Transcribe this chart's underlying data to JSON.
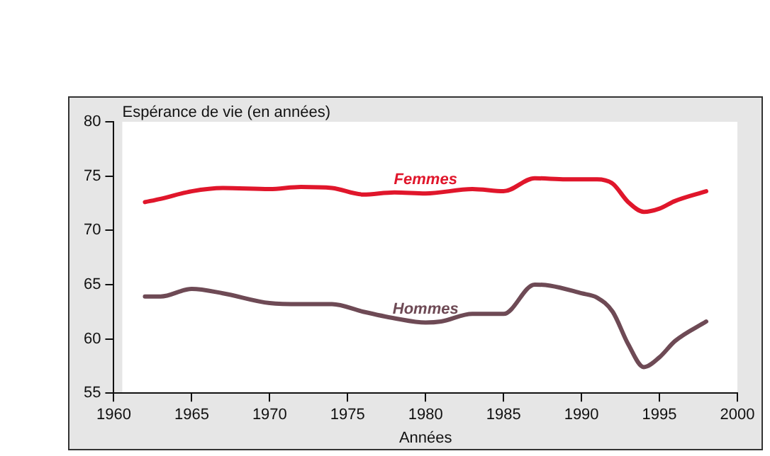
{
  "chart_data": {
    "type": "line",
    "xlabel": "Années",
    "ylabel": "Espérance de vie (en années)",
    "xlim": [
      1960,
      2000
    ],
    "xticks": [
      1960,
      1965,
      1970,
      1975,
      1980,
      1985,
      1990,
      1995,
      2000
    ],
    "ylim": [
      55,
      80
    ],
    "yticks": [
      55,
      60,
      65,
      70,
      75,
      80
    ],
    "grid": false,
    "legend": false,
    "marker": "none",
    "line_style": "solid",
    "series": [
      {
        "name": "Femmes",
        "color": "#e0162b",
        "x": [
          1962,
          1963,
          1965,
          1967,
          1970,
          1972,
          1974,
          1976,
          1978,
          1980,
          1983,
          1985,
          1987,
          1989,
          1991,
          1992,
          1993,
          1994,
          1995,
          1996,
          1998
        ],
        "values": [
          72.6,
          72.9,
          73.6,
          73.9,
          73.8,
          74.0,
          73.9,
          73.3,
          73.5,
          73.4,
          73.8,
          73.6,
          74.8,
          74.7,
          74.7,
          74.3,
          72.6,
          71.7,
          72.0,
          72.7,
          73.6
        ]
      },
      {
        "name": "Hommes",
        "color": "#6e4a55",
        "x": [
          1962,
          1963,
          1965,
          1967,
          1970,
          1972,
          1974,
          1976,
          1978,
          1980,
          1981,
          1983,
          1985,
          1987,
          1988,
          1990,
          1991,
          1992,
          1993,
          1994,
          1995,
          1996,
          1998
        ],
        "values": [
          63.9,
          63.9,
          64.6,
          64.2,
          63.3,
          63.2,
          63.2,
          62.5,
          61.9,
          61.5,
          61.6,
          62.3,
          62.3,
          65.0,
          64.9,
          64.2,
          63.8,
          62.5,
          59.5,
          57.4,
          58.3,
          59.8,
          61.6
        ]
      }
    ]
  }
}
